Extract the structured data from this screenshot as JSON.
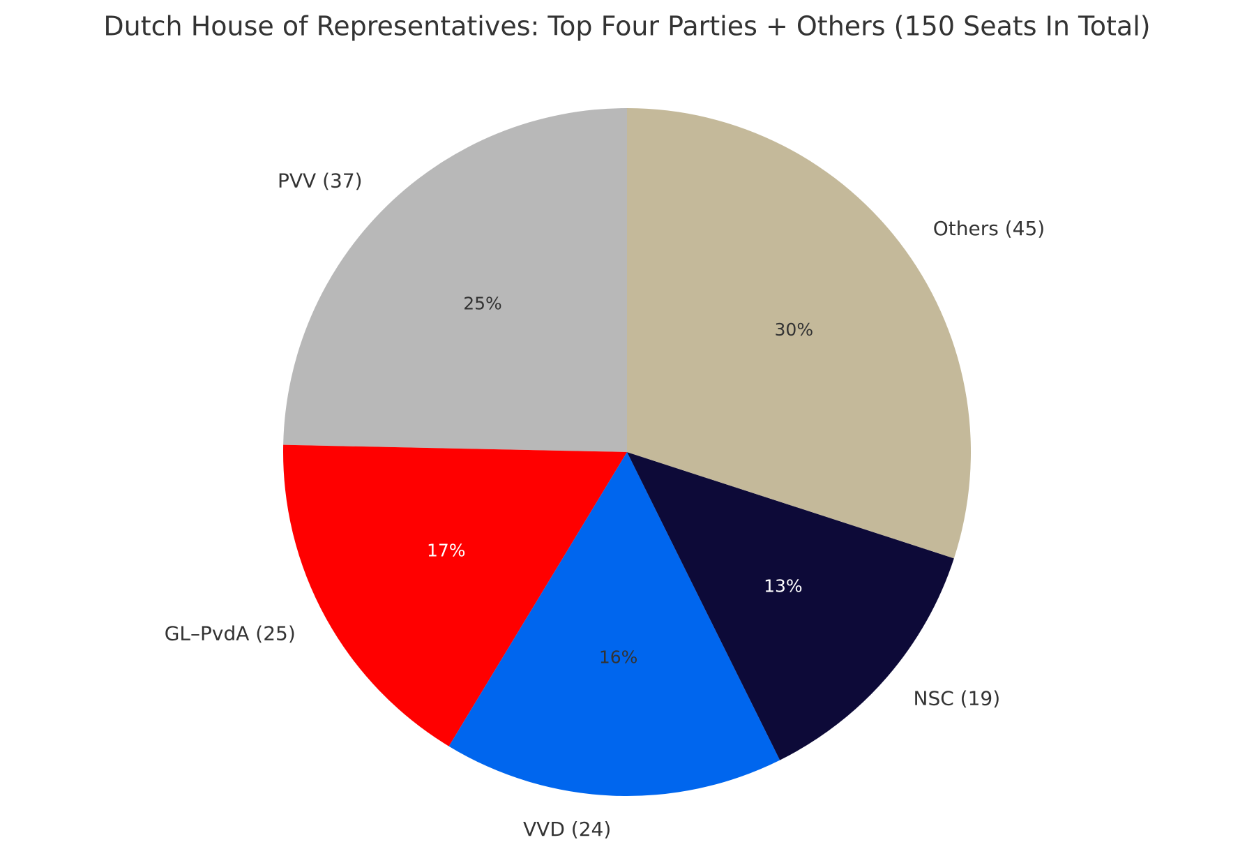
{
  "chart_data": {
    "type": "pie",
    "title": "Dutch House of Representatives: Top Four Parties + Others (150 Seats In Total)",
    "categories": [
      "PVV (37)",
      "GL–PvdA (25)",
      "VVD (24)",
      "NSC (19)",
      "Others (45)"
    ],
    "values": [
      37,
      25,
      24,
      19,
      45
    ],
    "value_labels": [
      "25%",
      "17%",
      "16%",
      "13%",
      "30%"
    ],
    "colors": [
      "#b8b8b8",
      "#ff0000",
      "#0066ee",
      "#0d0a38",
      "#c4b99a"
    ],
    "start_angle": 90,
    "direction": "counterclockwise"
  }
}
